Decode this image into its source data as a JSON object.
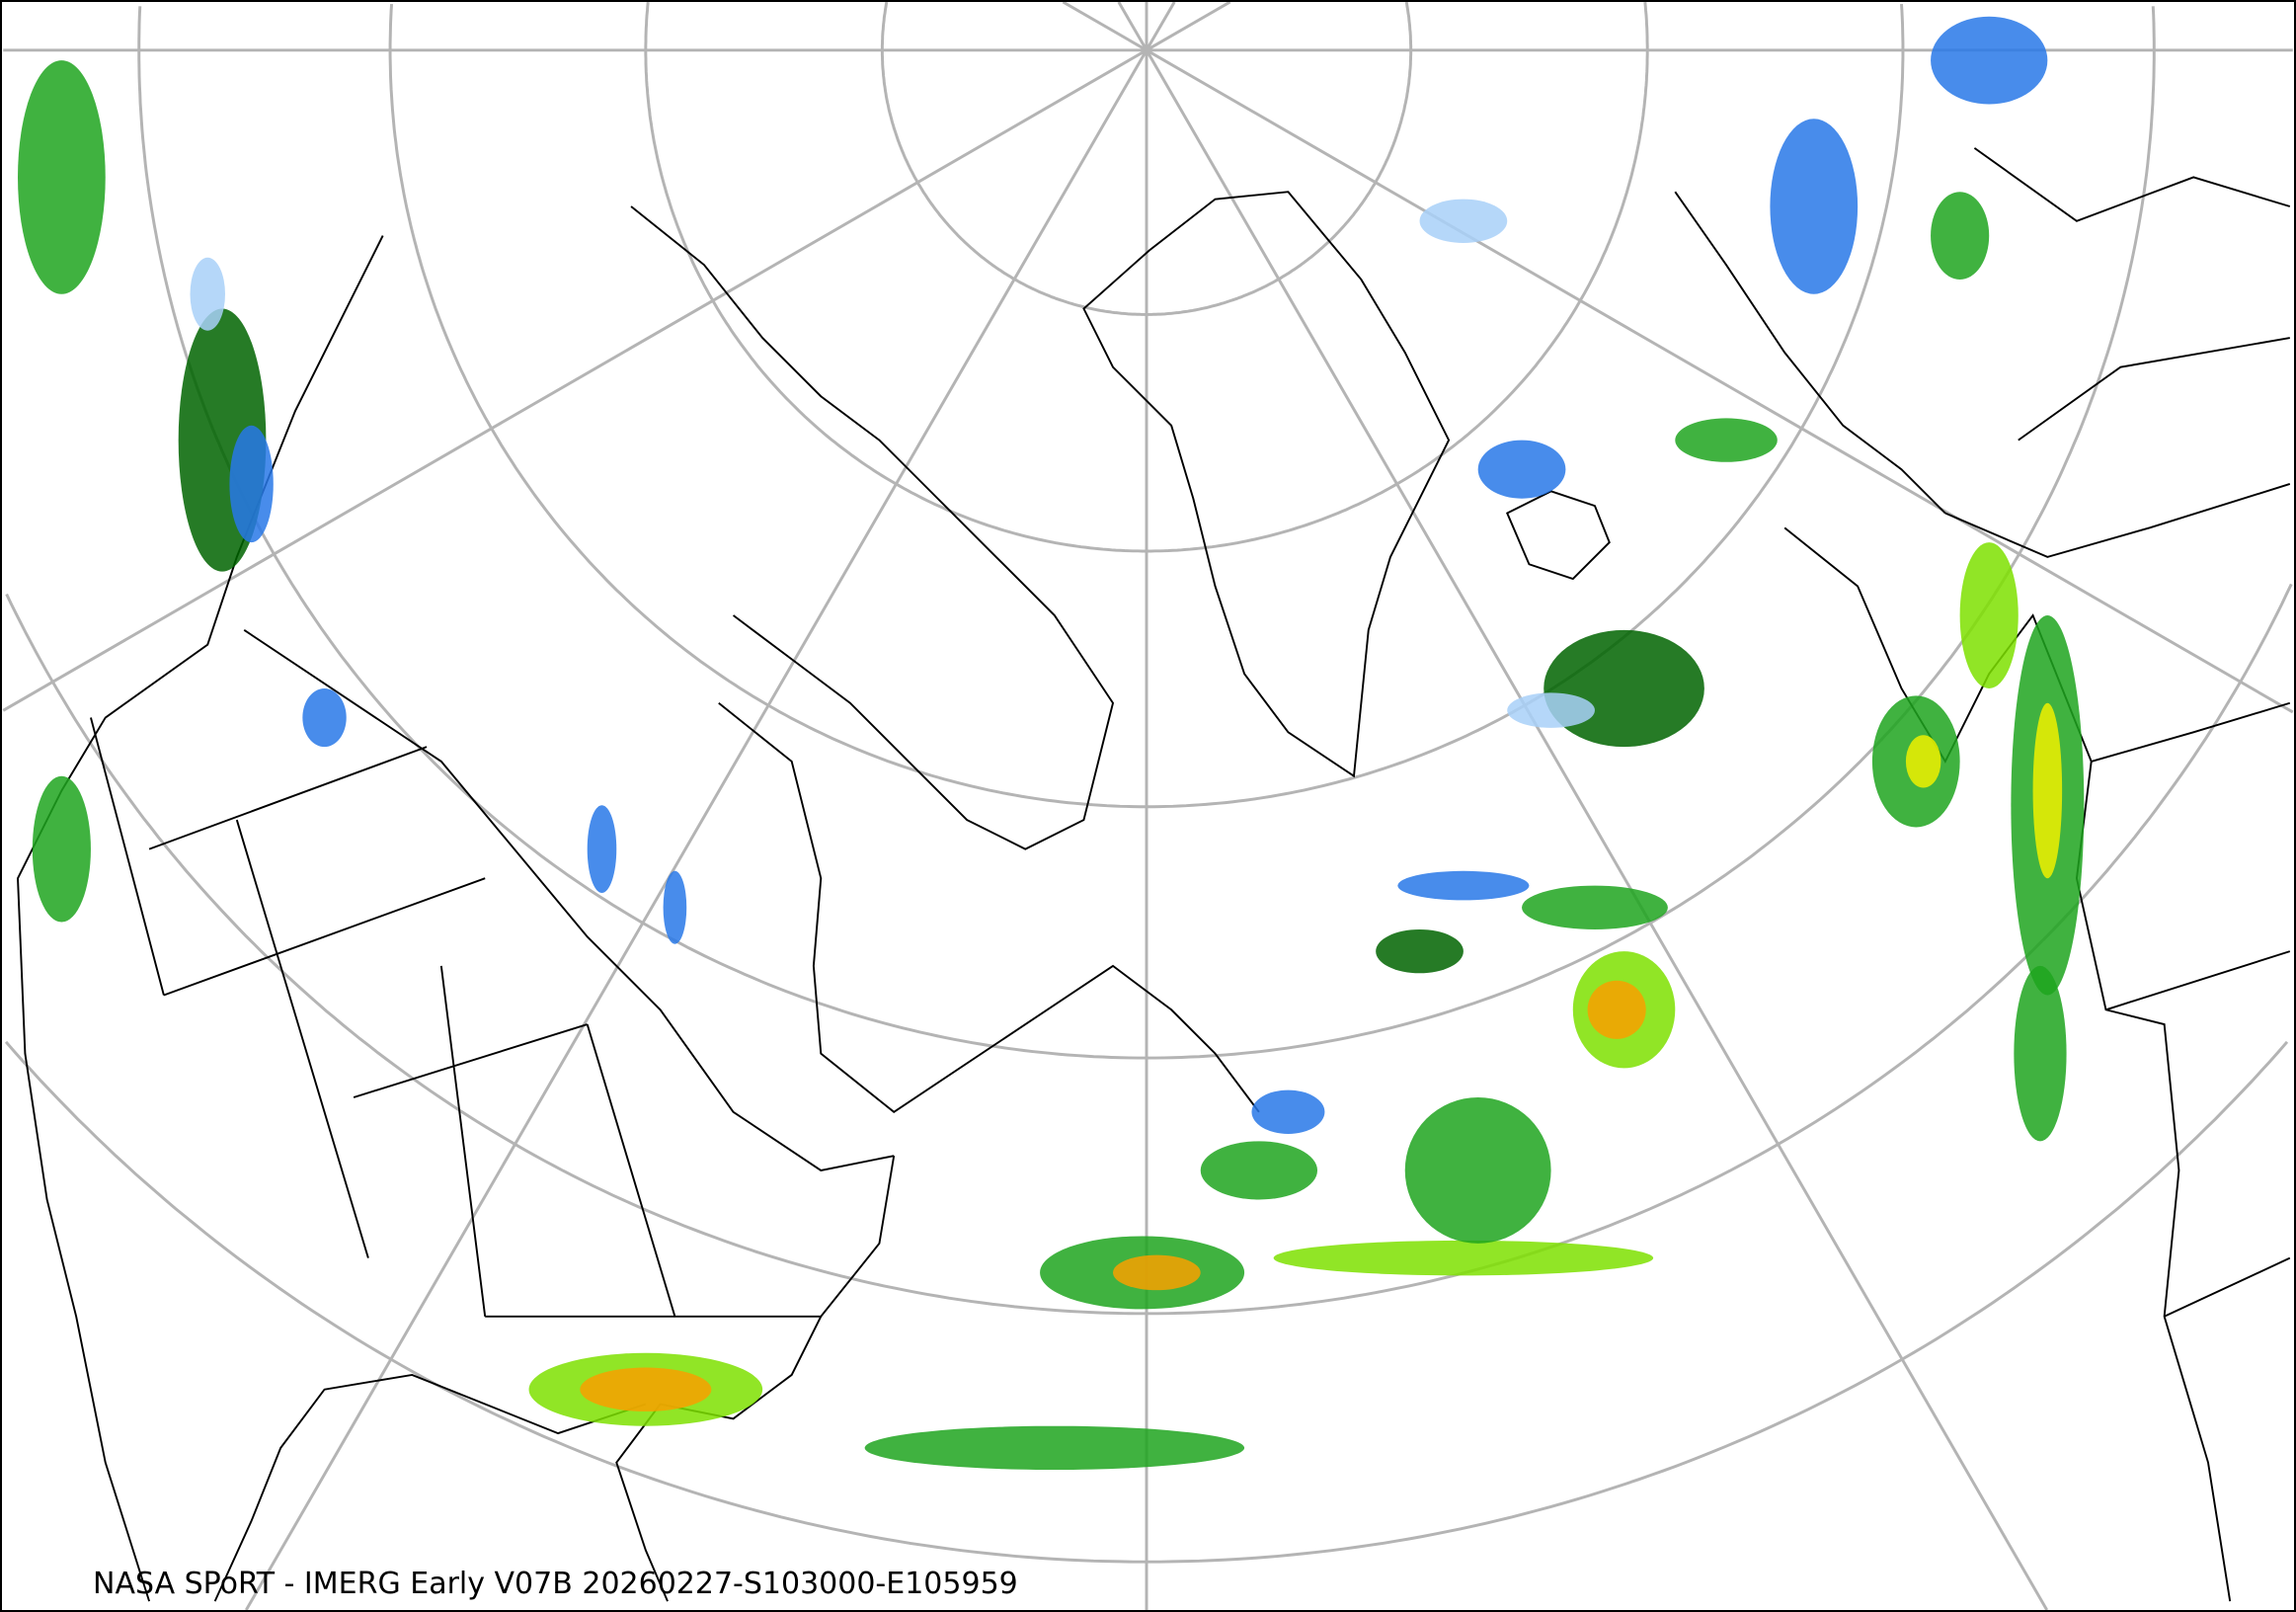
{
  "map": {
    "caption": "NASA SPoRT - IMERG Early V07B 20260227-S103000-E105959",
    "projection": "north-polar-stereographic",
    "graticule_color": "#b4b4b4",
    "boundary_color": "#000000",
    "precip_colors": {
      "light_blue": "#a8d0f8",
      "blue": "#2878e8",
      "dark_green": "#006400",
      "green": "#1ea51e",
      "light_green": "#7ee000",
      "yellow": "#f0f000",
      "orange": "#f8a000",
      "red": "#f03000",
      "magenta": "#e000e0"
    }
  }
}
